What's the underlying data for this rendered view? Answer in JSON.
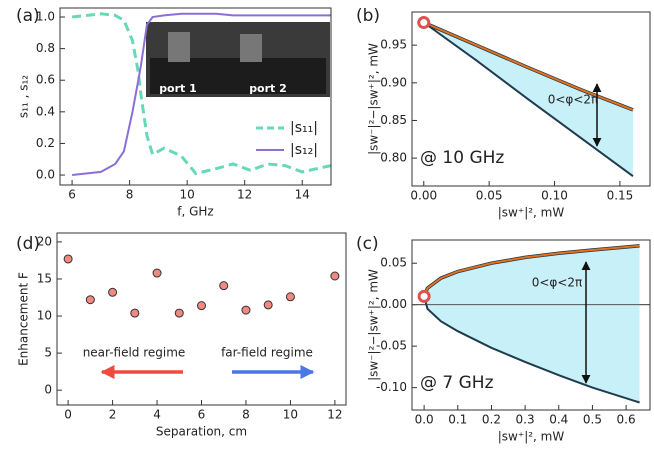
{
  "chart_data": [
    {
      "type": "line",
      "panel_label": "(a)",
      "xlabel": "f, GHz",
      "ylabel": "s₁₁ , s₁₂",
      "x": [
        6,
        7,
        7.5,
        7.8,
        8.1,
        8.3,
        8.4,
        8.6,
        8.8,
        9.2,
        9.8,
        10.3,
        11,
        11.6,
        12.2,
        12.8,
        13.4,
        14,
        14.5,
        15
      ],
      "series": [
        {
          "name": "|s₁₁|",
          "color": "#66d9b8",
          "dash": true,
          "values": [
            1.0,
            1.02,
            1.01,
            0.98,
            0.85,
            0.65,
            0.5,
            0.25,
            0.13,
            0.17,
            0.12,
            0.01,
            0.04,
            0.07,
            0.03,
            0.07,
            0.06,
            0.02,
            0.04,
            0.06
          ]
        },
        {
          "name": "|s₁₂|",
          "color": "#8b6fd6",
          "dash": false,
          "values": [
            0.0,
            0.02,
            0.07,
            0.15,
            0.4,
            0.6,
            0.7,
            0.95,
            1.0,
            1.01,
            1.02,
            1.02,
            1.02,
            1.01,
            1.01,
            1.01,
            1.01,
            1.01,
            1.01,
            1.01
          ]
        }
      ],
      "inset_labels": [
        "port 1",
        "port 2"
      ],
      "xlim": [
        5.58,
        15
      ],
      "ylim": [
        -0.063,
        1.057
      ],
      "xticks": [
        6,
        8,
        10,
        12,
        14
      ],
      "yticks": [
        {
          "value": 0,
          "label": "0.0"
        },
        0.2,
        0.4,
        0.6,
        0.8,
        {
          "value": 1,
          "label": "1.0"
        }
      ]
    },
    {
      "type": "band",
      "panel_label": "(b)",
      "xlabel": "|sw⁺|², mW",
      "ylabel": "|sw⁻|²−|sw⁺|², mW",
      "x": [
        0,
        0.04,
        0.08,
        0.12,
        0.16
      ],
      "series": [
        {
          "color": "#e8701a",
          "values": [
            0.98,
            0.95,
            0.92,
            0.891,
            0.864
          ]
        },
        {
          "color": "#1f3b4d",
          "values": [
            0.98,
            0.93,
            0.878,
            0.827,
            0.776
          ]
        }
      ],
      "fill": "#c8f0f8",
      "marker": {
        "x": 0,
        "y": 0.98,
        "color": "#e05050"
      },
      "annotations": [
        "0<φ<2π",
        "@ 10 GHz"
      ],
      "xlim": [
        -0.009,
        0.173
      ],
      "ylim": [
        0.763,
        0.994
      ],
      "xticks": [
        {
          "value": 0,
          "label": "0.00"
        },
        0.05,
        {
          "value": 0.1,
          "label": "0.10"
        },
        0.15
      ],
      "yticks": [
        {
          "value": 0.8,
          "label": "0.80"
        },
        0.85,
        {
          "value": 0.9,
          "label": "0.90"
        },
        0.95
      ]
    },
    {
      "type": "band",
      "panel_label": "(c)",
      "xlabel": "|sw⁺|², mW",
      "ylabel": "|sw⁻|²−|sw⁺|², mW",
      "x": [
        0,
        0.01,
        0.05,
        0.1,
        0.2,
        0.3,
        0.4,
        0.5,
        0.64
      ],
      "series": [
        {
          "color": "#e8701a",
          "values": [
            0.01,
            0.02,
            0.032,
            0.04,
            0.05,
            0.057,
            0.062,
            0.066,
            0.071
          ]
        },
        {
          "color": "#1f3b4d",
          "values": [
            0.01,
            -0.005,
            -0.02,
            -0.032,
            -0.052,
            -0.069,
            -0.085,
            -0.1,
            -0.118
          ]
        }
      ],
      "fill": "#c8f0f8",
      "marker": {
        "x": 0,
        "y": 0.01,
        "color": "#e05050"
      },
      "zero_line": true,
      "annotations": [
        "0<φ<2π",
        "@ 7 GHz"
      ],
      "xlim": [
        -0.036,
        0.671
      ],
      "ylim": [
        -0.127,
        0.078
      ],
      "xticks": [
        {
          "value": 0,
          "label": "0.0"
        },
        0.1,
        0.2,
        0.3,
        0.4,
        0.5,
        0.6
      ],
      "yticks": [
        {
          "value": -0.1,
          "label": "-0.10"
        },
        -0.05,
        {
          "value": 0,
          "label": "0.00"
        },
        0.05
      ]
    },
    {
      "type": "scatter",
      "panel_label": "(d)",
      "xlabel": "Separation, cm",
      "ylabel": "Enhancement F",
      "x": [
        0,
        1,
        2,
        3,
        4,
        5,
        6,
        7,
        8,
        9,
        10,
        12
      ],
      "values": [
        17.7,
        12.2,
        13.2,
        10.4,
        15.8,
        10.4,
        11.4,
        14.1,
        10.8,
        11.5,
        12.6,
        15.4
      ],
      "color": "#f08a80",
      "annotations": [
        "near-field regime",
        "far-field regime"
      ],
      "xlim": [
        -0.5,
        12.5
      ],
      "ylim": [
        -2,
        21.2
      ],
      "xticks": [
        0,
        2,
        4,
        6,
        8,
        10,
        12
      ],
      "yticks": [
        0,
        5,
        10,
        15,
        20
      ]
    }
  ]
}
